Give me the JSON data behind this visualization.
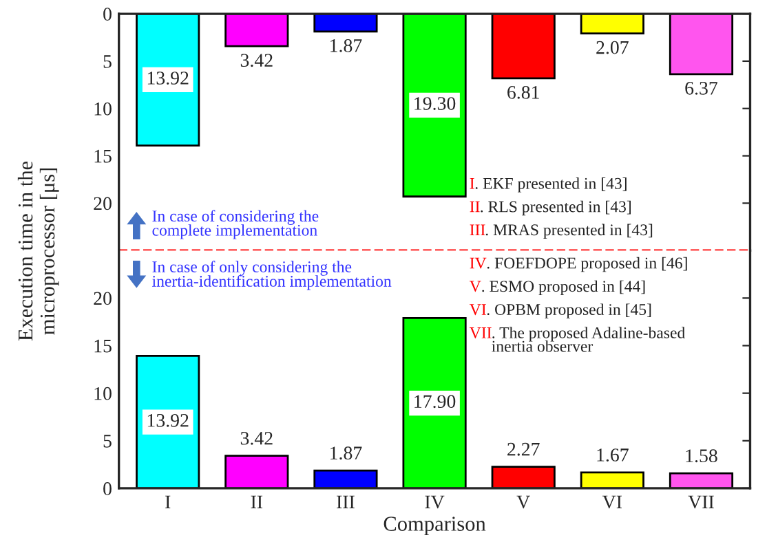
{
  "chart_data": [
    {
      "type": "bar",
      "ylabel": "Execution time in the\nmicroprocessor [μs]",
      "categories": [
        null,
        null,
        null,
        null,
        null,
        null,
        null
      ],
      "values": [
        13.92,
        3.42,
        1.87,
        19.3,
        6.81,
        2.07,
        6.37
      ],
      "colors": [
        "#00ffff",
        "#ff00ff",
        "#0000ff",
        "#00ff00",
        "#ff0000",
        "#ffff00",
        "#ff55ee"
      ],
      "ylim": [
        25,
        0
      ],
      "yticks": [
        0,
        5,
        10,
        15,
        20
      ],
      "value_labels": [
        "13.92",
        "3.42",
        "1.87",
        "19.30",
        "6.81",
        "2.07",
        "6.37"
      ],
      "tick_labels": "y",
      "ref_lines": [
        {
          "axis": "y",
          "value": 25,
          "color": "#ff0000",
          "line_style": "dashed"
        }
      ],
      "annotations": [
        "In case of considering the\ncomplete implementation",
        "I. EKF presented in [43]",
        "II. RLS presented in [43]",
        "III. MRAS presented in [43]"
      ]
    },
    {
      "type": "bar",
      "xlabel": "Comparison",
      "categories": [
        "I",
        "II",
        "III",
        "IV",
        "V",
        "VI",
        "VII"
      ],
      "values": [
        13.92,
        3.42,
        1.87,
        17.9,
        2.27,
        1.67,
        1.58
      ],
      "colors": [
        "#00ffff",
        "#ff00ff",
        "#0000ff",
        "#00ff00",
        "#ff0000",
        "#ffff00",
        "#ff55ee"
      ],
      "ylim": [
        0,
        25
      ],
      "yticks": [
        0,
        5,
        10,
        15,
        20
      ],
      "value_labels": [
        "13.92",
        "3.42",
        "1.87",
        "17.90",
        "2.27",
        "1.67",
        "1.58"
      ],
      "annotations": [
        "In case of only considering the\ninertia-identification implementation",
        "IV. FOEFDOPE proposed in [46]",
        "V. ESMO proposed in [44]",
        "VI. OPBM proposed in [45]",
        "VII. The proposed Adaline-based\ninertia observer"
      ]
    }
  ]
}
